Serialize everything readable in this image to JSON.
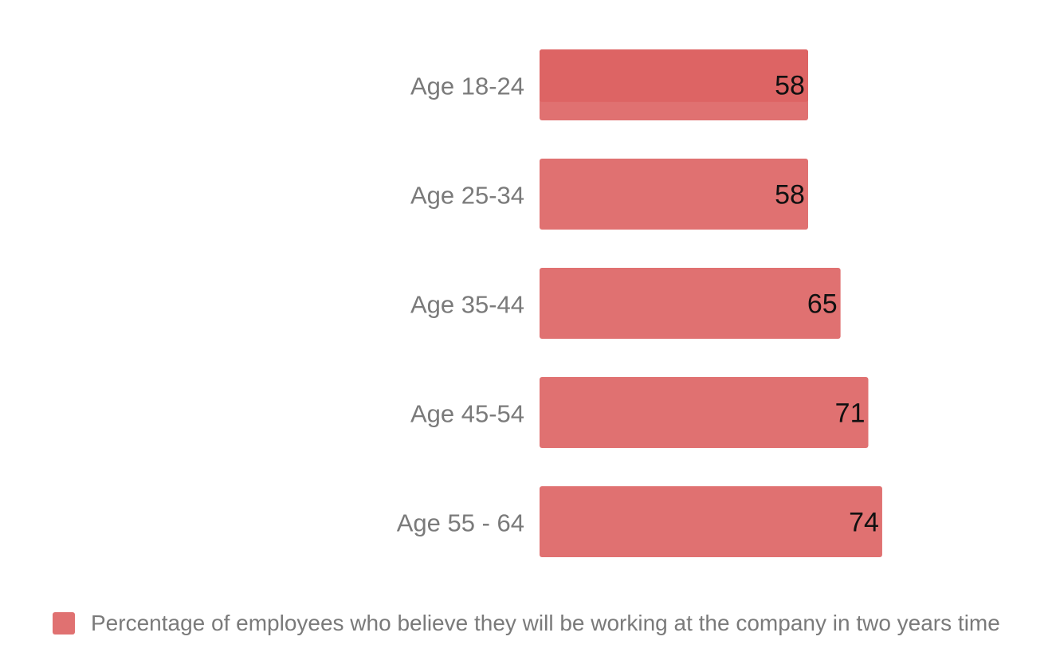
{
  "chart_data": {
    "type": "bar",
    "orientation": "horizontal",
    "categories": [
      "Age 18-24",
      "Age 25-34",
      "Age 35-44",
      "Age 45-54",
      "Age 55 - 64"
    ],
    "series": [
      {
        "name": "Percentage of employees who believe they will be working at the company in two years time",
        "values": [
          58,
          58,
          65,
          71,
          74
        ],
        "color": "#e07171"
      }
    ],
    "data_labels": true,
    "grid": false,
    "legend_position": "bottom-left"
  },
  "colors": {
    "bar": "#e07171",
    "bar_highlight": "#dd6464",
    "category_label": "#7a7a7a",
    "value_label": "#111111",
    "legend_text": "#7a7a7a"
  }
}
